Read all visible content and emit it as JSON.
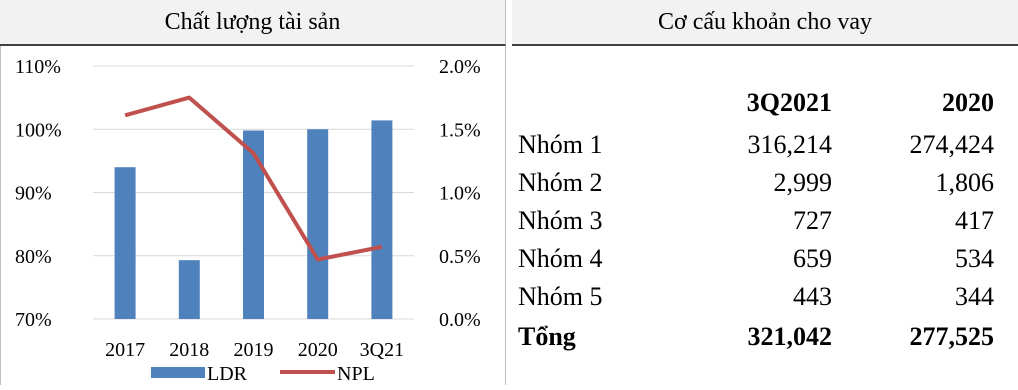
{
  "left_panel": {
    "title": "Chất lượng tài sản"
  },
  "right_panel": {
    "title": "Cơ cấu khoản cho vay",
    "columns": [
      "3Q2021",
      "2020"
    ],
    "rows": [
      {
        "label": "Nhóm 1",
        "values": [
          "316,214",
          "274,424"
        ]
      },
      {
        "label": "Nhóm 2",
        "values": [
          "2,999",
          "1,806"
        ]
      },
      {
        "label": "Nhóm 3",
        "values": [
          "727",
          "417"
        ]
      },
      {
        "label": "Nhóm 4",
        "values": [
          "659",
          "534"
        ]
      },
      {
        "label": "Nhóm 5",
        "values": [
          "443",
          "344"
        ]
      }
    ],
    "total": {
      "label": "Tổng",
      "values": [
        "321,042",
        "277,525"
      ]
    }
  },
  "chart_data": {
    "type": "bar",
    "categories": [
      "2017",
      "2018",
      "2019",
      "2020",
      "3Q21"
    ],
    "series": [
      {
        "name": "LDR",
        "kind": "bar",
        "axis": "left",
        "color": "#4f81bd",
        "values": [
          94.0,
          79.3,
          99.8,
          100.0,
          101.4
        ]
      },
      {
        "name": "NPL",
        "kind": "line",
        "axis": "right",
        "color": "#c0504d",
        "values": [
          1.61,
          1.75,
          1.31,
          0.47,
          0.57
        ]
      }
    ],
    "y_left": {
      "ticks": [
        "110%",
        "100%",
        "90%",
        "80%",
        "70%"
      ],
      "range": [
        70,
        110
      ]
    },
    "y_right": {
      "ticks": [
        "2.0%",
        "1.5%",
        "1.0%",
        "0.5%",
        "0.0%"
      ],
      "range": [
        0,
        2.0
      ]
    },
    "grid": true,
    "legend": "bottom"
  }
}
